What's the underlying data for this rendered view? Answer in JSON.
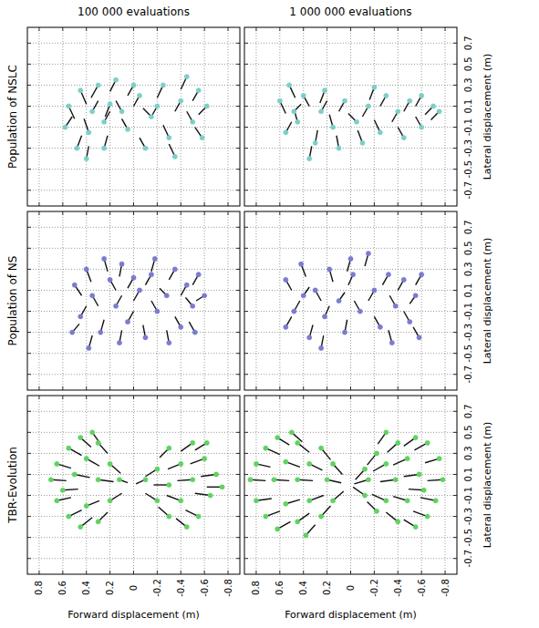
{
  "chart_data": [
    {
      "type": "scatter",
      "title": "100 000 evaluations",
      "row_label": "Population of NSLC",
      "xlim": [
        0.9,
        -0.9
      ],
      "ylim": [
        -0.85,
        0.85
      ],
      "xticks": [
        0.8,
        0.6,
        0.4,
        0.2,
        0,
        -0.2,
        -0.4,
        -0.6,
        -0.8
      ],
      "yticks": [
        -0.7,
        -0.5,
        -0.3,
        -0.1,
        0.1,
        0.3,
        0.5,
        0.7
      ],
      "grid": true,
      "tick_labels": false,
      "series": [
        {
          "color": "#7ccfc8",
          "marker": "circle",
          "x": [
            0.55,
            0.45,
            0.38,
            0.3,
            0.2,
            0.25,
            0.1,
            0.05,
            -0.05,
            -0.15,
            -0.25,
            -0.3,
            -0.4,
            -0.45,
            -0.5,
            -0.55,
            -0.62,
            -0.35,
            0.15,
            0.48,
            0.58,
            0.35,
            -0.1,
            -0.2,
            0.0,
            -0.58,
            0.25,
            0.4
          ],
          "values": [
            0.1,
            0.25,
            -0.15,
            0.3,
            0.12,
            -0.3,
            0.05,
            -0.12,
            0.2,
            0.0,
            0.3,
            -0.2,
            0.15,
            0.38,
            -0.05,
            0.25,
            0.1,
            -0.38,
            0.35,
            -0.3,
            -0.1,
            0.05,
            -0.3,
            0.1,
            0.3,
            -0.2,
            -0.05,
            -0.4
          ],
          "tail_x": [
            0.5,
            0.4,
            0.42,
            0.36,
            0.24,
            0.22,
            0.15,
            0.1,
            0.0,
            -0.08,
            -0.2,
            -0.25,
            -0.35,
            -0.4,
            -0.45,
            -0.5,
            -0.55,
            -0.3,
            0.2,
            0.44,
            0.52,
            0.3,
            -0.05,
            -0.15,
            0.05,
            -0.52,
            0.2,
            0.38
          ],
          "tail_y": [
            -0.02,
            0.12,
            -0.02,
            0.18,
            0.0,
            -0.18,
            0.15,
            -0.02,
            0.1,
            0.08,
            0.18,
            -0.08,
            0.05,
            0.26,
            0.05,
            0.15,
            0.02,
            -0.26,
            0.24,
            -0.18,
            0.0,
            0.15,
            -0.2,
            0.0,
            0.2,
            -0.1,
            0.05,
            -0.28
          ]
        }
      ]
    },
    {
      "type": "scatter",
      "title": "1 000 000 evaluations",
      "ylabel": "Lateral displacement (m)",
      "xlim": [
        0.9,
        -0.9
      ],
      "ylim": [
        -0.85,
        0.85
      ],
      "xticks": [
        0.8,
        0.6,
        0.4,
        0.2,
        0,
        -0.2,
        -0.4,
        -0.6,
        -0.8
      ],
      "yticks": [
        -0.7,
        -0.5,
        -0.3,
        -0.1,
        0.1,
        0.3,
        0.5,
        0.7
      ],
      "grid": true,
      "tick_labels": "y",
      "series": [
        {
          "color": "#7ccfc8",
          "marker": "circle",
          "x": [
            0.6,
            0.52,
            0.45,
            0.4,
            0.3,
            0.22,
            0.15,
            0.05,
            -0.05,
            -0.15,
            -0.25,
            -0.3,
            -0.4,
            -0.5,
            -0.6,
            -0.7,
            -0.75,
            -0.45,
            -0.2,
            0.1,
            0.35,
            0.55,
            -0.6,
            0.25,
            -0.1,
            0.48
          ],
          "values": [
            0.15,
            0.3,
            -0.05,
            0.2,
            -0.25,
            0.25,
            -0.1,
            0.15,
            -0.05,
            0.1,
            -0.15,
            0.2,
            0.05,
            0.15,
            0.2,
            0.1,
            0.05,
            -0.2,
            0.28,
            -0.3,
            -0.4,
            -0.15,
            -0.1,
            0.05,
            -0.25,
            0.05
          ],
          "tail_x": [
            0.55,
            0.47,
            0.48,
            0.35,
            0.28,
            0.26,
            0.18,
            0.1,
            0.02,
            -0.1,
            -0.2,
            -0.25,
            -0.35,
            -0.45,
            -0.55,
            -0.63,
            -0.68,
            -0.4,
            -0.16,
            0.12,
            0.33,
            0.5,
            -0.55,
            0.2,
            -0.06,
            0.42
          ],
          "tail_y": [
            0.03,
            0.18,
            0.07,
            0.1,
            -0.13,
            0.13,
            0.02,
            0.05,
            0.03,
            0.0,
            -0.03,
            0.1,
            -0.05,
            0.05,
            0.1,
            0.02,
            -0.03,
            -0.1,
            0.16,
            -0.18,
            -0.28,
            -0.05,
            0.0,
            0.15,
            -0.13,
            0.12
          ]
        }
      ]
    },
    {
      "type": "scatter",
      "row_label": "Population of NS",
      "xlim": [
        0.9,
        -0.9
      ],
      "ylim": [
        -0.85,
        0.85
      ],
      "xticks": [
        0.8,
        0.6,
        0.4,
        0.2,
        0,
        -0.2,
        -0.4,
        -0.6,
        -0.8
      ],
      "yticks": [
        -0.7,
        -0.5,
        -0.3,
        -0.1,
        0.1,
        0.3,
        0.5,
        0.7
      ],
      "grid": true,
      "tick_labels": false,
      "series": [
        {
          "color": "#7b7bd0",
          "marker": "circle",
          "x": [
            0.5,
            0.45,
            0.4,
            0.35,
            0.28,
            0.2,
            0.15,
            0.1,
            0.05,
            -0.05,
            -0.1,
            -0.15,
            -0.2,
            -0.28,
            -0.35,
            -0.4,
            -0.45,
            -0.5,
            -0.55,
            -0.6,
            -0.3,
            0.52,
            0.25,
            -0.52,
            0.0,
            0.38,
            -0.18,
            0.12
          ],
          "values": [
            0.15,
            -0.15,
            0.3,
            0.05,
            -0.3,
            0.2,
            -0.05,
            0.35,
            -0.2,
            0.1,
            -0.35,
            0.25,
            -0.1,
            0.05,
            0.3,
            -0.25,
            0.15,
            -0.05,
            0.25,
            0.05,
            -0.4,
            -0.3,
            0.4,
            -0.3,
            0.22,
            -0.45,
            0.4,
            -0.4
          ],
          "tail_x": [
            0.44,
            0.4,
            0.36,
            0.3,
            0.25,
            0.15,
            0.1,
            0.12,
            0.0,
            0.0,
            -0.08,
            -0.1,
            -0.15,
            -0.22,
            -0.3,
            -0.35,
            -0.4,
            -0.44,
            -0.5,
            -0.53,
            -0.28,
            0.46,
            0.22,
            -0.47,
            0.05,
            0.35,
            -0.15,
            0.1
          ],
          "tail_y": [
            0.05,
            -0.05,
            0.18,
            -0.05,
            -0.18,
            0.1,
            0.05,
            0.23,
            -0.1,
            0.0,
            -0.23,
            0.15,
            0.0,
            0.12,
            0.2,
            -0.15,
            0.05,
            0.03,
            0.15,
            0.0,
            -0.28,
            -0.22,
            0.28,
            -0.2,
            0.12,
            -0.33,
            0.28,
            -0.28
          ]
        }
      ]
    },
    {
      "type": "scatter",
      "ylabel": "Lateral displacement (m)",
      "xlim": [
        0.9,
        -0.9
      ],
      "ylim": [
        -0.85,
        0.85
      ],
      "xticks": [
        0.8,
        0.6,
        0.4,
        0.2,
        0,
        -0.2,
        -0.4,
        -0.6,
        -0.8
      ],
      "yticks": [
        -0.7,
        -0.5,
        -0.3,
        -0.1,
        0.1,
        0.3,
        0.5,
        0.7
      ],
      "grid": true,
      "tick_labels": "y",
      "series": [
        {
          "color": "#7b7bd0",
          "marker": "circle",
          "x": [
            0.55,
            0.48,
            0.42,
            0.35,
            0.3,
            0.22,
            0.18,
            0.1,
            0.05,
            -0.02,
            -0.08,
            -0.15,
            -0.2,
            -0.25,
            -0.32,
            -0.38,
            -0.45,
            -0.5,
            -0.55,
            -0.6,
            -0.35,
            0.25,
            0.55,
            -0.58,
            0.0,
            0.4
          ],
          "values": [
            0.2,
            -0.1,
            0.35,
            -0.35,
            0.1,
            -0.15,
            0.3,
            0.0,
            -0.3,
            0.25,
            -0.1,
            0.45,
            0.1,
            -0.25,
            0.25,
            -0.05,
            0.2,
            -0.2,
            0.05,
            0.25,
            -0.4,
            -0.45,
            -0.25,
            -0.35,
            0.4,
            0.05
          ],
          "tail_x": [
            0.5,
            0.43,
            0.38,
            0.32,
            0.25,
            0.18,
            0.15,
            0.05,
            0.03,
            0.02,
            -0.03,
            -0.12,
            -0.15,
            -0.2,
            -0.27,
            -0.33,
            -0.4,
            -0.45,
            -0.5,
            -0.55,
            -0.32,
            0.23,
            0.5,
            -0.53,
            0.03,
            0.35
          ],
          "tail_y": [
            0.1,
            0.0,
            0.23,
            -0.23,
            0.0,
            -0.05,
            0.18,
            0.08,
            -0.18,
            0.15,
            0.0,
            0.33,
            0.0,
            -0.15,
            0.15,
            0.05,
            0.1,
            -0.1,
            -0.03,
            0.15,
            -0.28,
            -0.33,
            -0.15,
            -0.25,
            0.28,
            0.13
          ]
        }
      ]
    },
    {
      "type": "scatter",
      "row_label": "TBR-Evolution",
      "xlabel": "Forward displacement (m)",
      "xlim": [
        0.9,
        -0.9
      ],
      "ylim": [
        -0.85,
        0.85
      ],
      "xticks": [
        0.8,
        0.6,
        0.4,
        0.2,
        0,
        -0.2,
        -0.4,
        -0.6,
        -0.8
      ],
      "yticks": [
        -0.7,
        -0.5,
        -0.3,
        -0.1,
        0.1,
        0.3,
        0.5,
        0.7
      ],
      "grid": true,
      "tick_labels": "x",
      "series": [
        {
          "color": "#5fd35f",
          "marker": "circle",
          "x": [
            0.7,
            0.65,
            0.65,
            0.55,
            0.55,
            0.45,
            0.45,
            0.5,
            0.4,
            0.4,
            0.3,
            0.3,
            0.3,
            0.2,
            0.2,
            0.35,
            0.6,
            0.12,
            -0.7,
            -0.65,
            -0.6,
            -0.55,
            -0.5,
            -0.45,
            -0.5,
            -0.4,
            -0.4,
            -0.3,
            -0.3,
            -0.3,
            -0.2,
            -0.2,
            -0.62,
            -0.1,
            -0.75
          ],
          "values": [
            0.05,
            0.2,
            -0.15,
            0.35,
            -0.3,
            0.45,
            -0.4,
            0.1,
            0.25,
            -0.2,
            0.4,
            -0.35,
            0.05,
            0.2,
            -0.15,
            0.5,
            -0.05,
            0.05,
            0.1,
            -0.1,
            0.25,
            -0.3,
            0.4,
            -0.4,
            0.05,
            0.2,
            -0.15,
            0.35,
            -0.3,
            0.0,
            0.15,
            -0.15,
            0.4,
            0.05,
            -0.02
          ],
          "tail_x": [
            0.57,
            0.53,
            0.53,
            0.44,
            0.44,
            0.36,
            0.35,
            0.37,
            0.29,
            0.29,
            0.22,
            0.22,
            0.17,
            0.11,
            0.1,
            0.28,
            0.47,
            0.05,
            -0.57,
            -0.52,
            -0.48,
            -0.44,
            -0.4,
            -0.36,
            -0.37,
            -0.29,
            -0.28,
            -0.22,
            -0.21,
            -0.17,
            -0.1,
            -0.1,
            -0.52,
            -0.02,
            -0.62
          ],
          "tail_y": [
            0.04,
            0.16,
            -0.12,
            0.28,
            -0.24,
            0.36,
            -0.31,
            0.07,
            0.18,
            -0.15,
            0.3,
            -0.26,
            0.03,
            0.11,
            -0.08,
            0.39,
            -0.04,
            0.02,
            0.08,
            -0.08,
            0.2,
            -0.24,
            0.32,
            -0.32,
            0.04,
            0.15,
            -0.1,
            0.26,
            -0.21,
            0.0,
            0.08,
            -0.08,
            0.33,
            0.01,
            -0.02
          ]
        }
      ]
    },
    {
      "type": "scatter",
      "xlabel": "Forward displacement (m)",
      "ylabel": "Lateral displacement (m)",
      "xlim": [
        0.9,
        -0.9
      ],
      "ylim": [
        -0.85,
        0.85
      ],
      "xticks": [
        0.8,
        0.6,
        0.4,
        0.2,
        0,
        -0.2,
        -0.4,
        -0.6,
        -0.8
      ],
      "yticks": [
        -0.7,
        -0.5,
        -0.3,
        -0.1,
        0.1,
        0.3,
        0.5,
        0.7
      ],
      "grid": true,
      "tick_labels": true,
      "series": [
        {
          "color": "#5fd35f",
          "marker": "circle",
          "x": [
            0.85,
            0.8,
            0.8,
            0.72,
            0.72,
            0.62,
            0.62,
            0.65,
            0.55,
            0.55,
            0.45,
            0.45,
            0.45,
            0.35,
            0.35,
            0.25,
            0.25,
            0.2,
            0.5,
            0.15,
            0.15,
            0.38,
            -0.78,
            -0.75,
            -0.72,
            -0.65,
            -0.65,
            -0.55,
            -0.55,
            -0.58,
            -0.48,
            -0.48,
            -0.4,
            -0.4,
            -0.38,
            -0.3,
            -0.3,
            -0.22,
            -0.22,
            -0.15,
            -0.12,
            -0.12,
            -0.3,
            -0.62
          ],
          "values": [
            0.05,
            0.2,
            -0.15,
            0.35,
            -0.3,
            0.45,
            -0.42,
            0.05,
            0.22,
            -0.18,
            0.4,
            -0.35,
            0.05,
            0.2,
            -0.15,
            0.35,
            -0.3,
            0.05,
            0.5,
            0.2,
            -0.15,
            -0.48,
            0.05,
            0.25,
            -0.15,
            0.4,
            -0.3,
            0.45,
            -0.4,
            0.1,
            0.25,
            -0.15,
            0.4,
            -0.35,
            0.05,
            0.2,
            -0.15,
            0.3,
            -0.25,
            0.05,
            0.15,
            -0.1,
            0.5,
            -0.05
          ],
          "tail_x": [
            0.72,
            0.68,
            0.67,
            0.6,
            0.6,
            0.52,
            0.51,
            0.52,
            0.43,
            0.43,
            0.35,
            0.35,
            0.32,
            0.24,
            0.23,
            0.17,
            0.17,
            0.08,
            0.41,
            0.07,
            0.06,
            0.3,
            -0.65,
            -0.63,
            -0.59,
            -0.54,
            -0.53,
            -0.45,
            -0.45,
            -0.45,
            -0.36,
            -0.36,
            -0.31,
            -0.3,
            -0.25,
            -0.19,
            -0.18,
            -0.14,
            -0.14,
            -0.03,
            -0.04,
            -0.02,
            -0.23,
            -0.49
          ],
          "tail_y": [
            0.04,
            0.17,
            -0.13,
            0.29,
            -0.25,
            0.38,
            -0.35,
            0.04,
            0.17,
            -0.14,
            0.31,
            -0.27,
            0.04,
            0.14,
            -0.1,
            0.24,
            -0.2,
            0.02,
            0.41,
            0.1,
            -0.06,
            -0.38,
            0.04,
            0.21,
            -0.12,
            0.33,
            -0.25,
            0.37,
            -0.33,
            0.08,
            0.19,
            -0.11,
            0.31,
            -0.26,
            0.03,
            0.13,
            -0.09,
            0.19,
            -0.16,
            0.01,
            0.05,
            -0.02,
            0.39,
            -0.04
          ]
        }
      ]
    }
  ]
}
